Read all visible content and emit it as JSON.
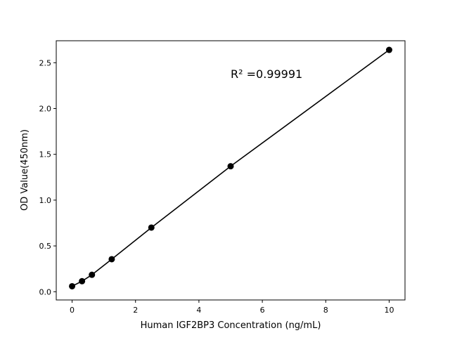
{
  "chart_data": {
    "type": "scatter",
    "title": "",
    "xlabel": "Human IGF2BP3 Concentration (ng/mL)",
    "ylabel": "OD Value(450nm)",
    "xlim": [
      -0.5,
      10.5
    ],
    "ylim": [
      -0.09,
      2.74
    ],
    "xticks": [
      0,
      2,
      4,
      6,
      8,
      10
    ],
    "xtick_labels": [
      "0",
      "2",
      "4",
      "6",
      "8",
      "10"
    ],
    "yticks": [
      0.0,
      0.5,
      1.0,
      1.5,
      2.0,
      2.5
    ],
    "ytick_labels": [
      "0.0",
      "0.5",
      "1.0",
      "1.5",
      "2.0",
      "2.5"
    ],
    "grid": false,
    "series": [
      {
        "x": [
          0,
          0.3125,
          0.625,
          1.25,
          2.5,
          5,
          10
        ],
        "y": [
          0.06,
          0.115,
          0.185,
          0.355,
          0.7,
          1.37,
          2.64
        ],
        "color": "#000000",
        "marker": "circle",
        "line": true
      }
    ],
    "annotations": [
      {
        "text": "R² =0.99991",
        "x": 5,
        "y": 2.38
      }
    ]
  }
}
